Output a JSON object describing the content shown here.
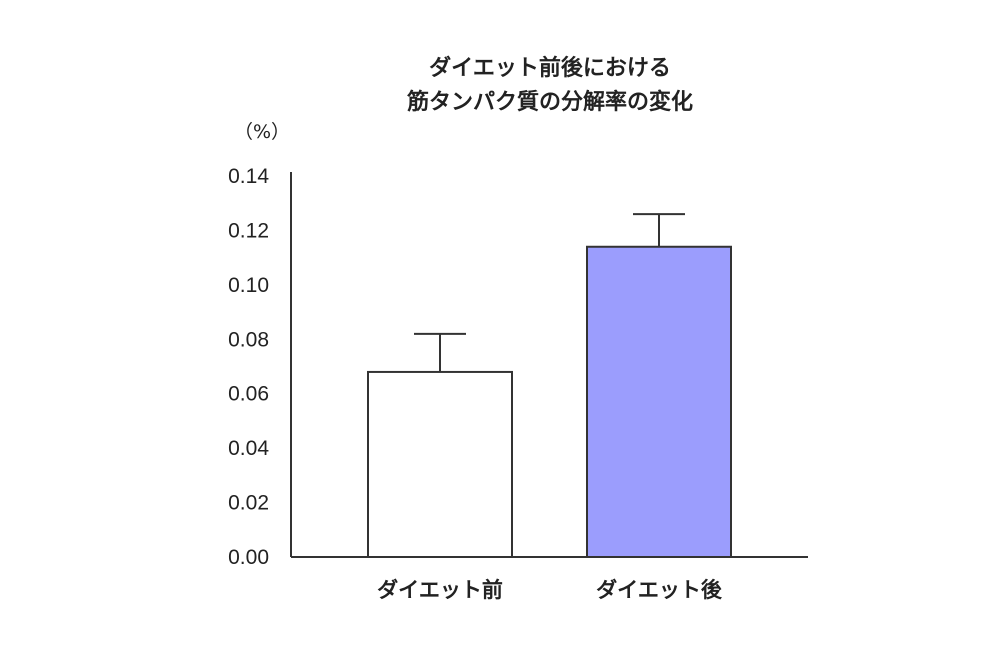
{
  "chart_data": {
    "type": "bar",
    "title_lines": [
      "ダイエット前後における",
      "筋タンパク質の分解率の変化"
    ],
    "unit_label": "（%）",
    "categories": [
      "ダイエット前",
      "ダイエット後"
    ],
    "values": [
      0.068,
      0.114
    ],
    "error_upper": [
      0.082,
      0.126
    ],
    "bar_fills": [
      "#ffffff",
      "#9b9dfd"
    ],
    "bar_stroke": "#333333",
    "ylim": [
      0,
      0.14
    ],
    "y_ticks": [
      0.0,
      0.02,
      0.04,
      0.06,
      0.08,
      0.1,
      0.12,
      0.14
    ],
    "y_tick_labels": [
      "0.00",
      "0.02",
      "0.04",
      "0.06",
      "0.08",
      "0.10",
      "0.12",
      "0.14"
    ],
    "grid": false,
    "legend": "none"
  }
}
